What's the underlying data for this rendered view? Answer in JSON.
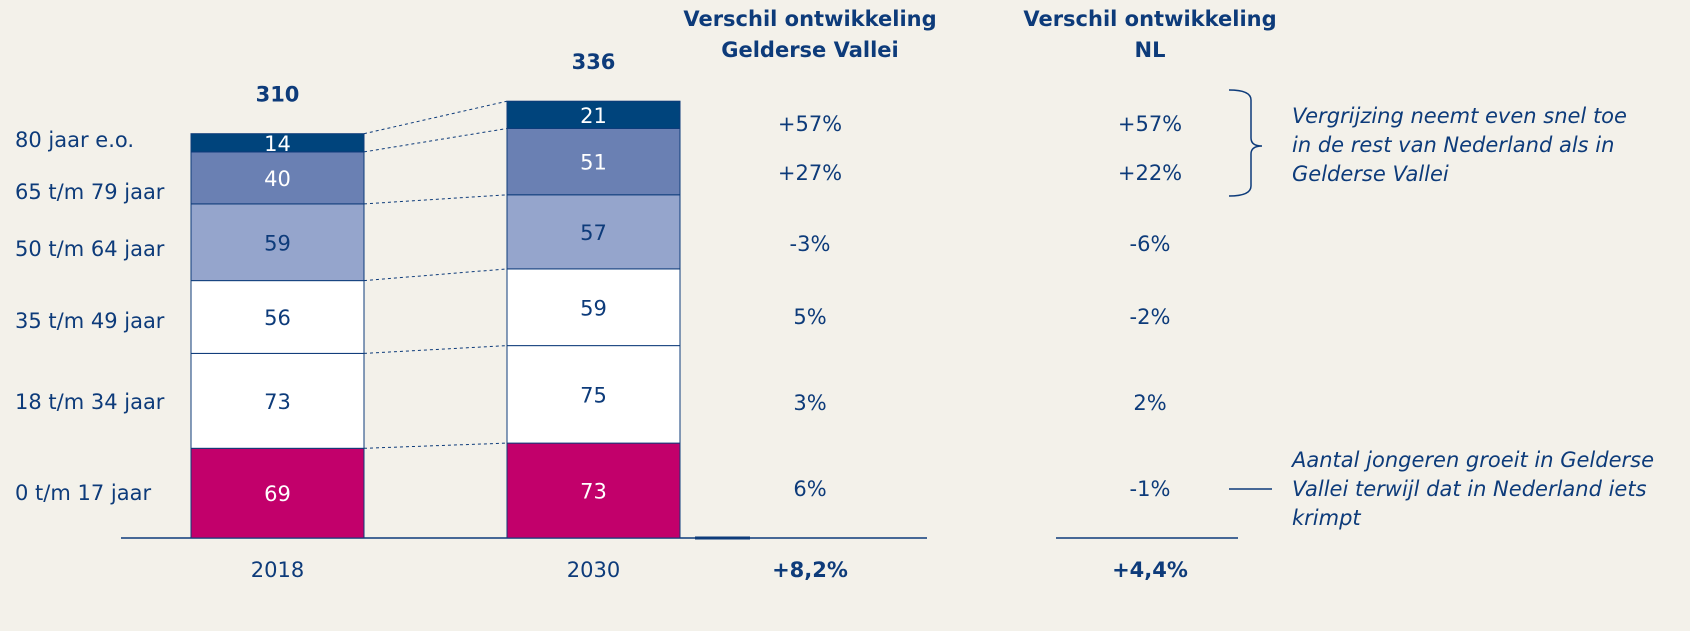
{
  "chart_data": {
    "type": "stacked-bar",
    "categories": [
      "2018",
      "2030"
    ],
    "totals": [
      310,
      336
    ],
    "series": [
      {
        "name": "0 t/m 17 jaar",
        "color": "#c2006b",
        "values": [
          69,
          73
        ]
      },
      {
        "name": "18 t/m 34 jaar",
        "color": "#ffffff",
        "values": [
          73,
          75
        ]
      },
      {
        "name": "35 t/m 49 jaar",
        "color": "#ffffff",
        "values": [
          56,
          59
        ]
      },
      {
        "name": "50 t/m 64 jaar",
        "color": "#95a5cc",
        "values": [
          59,
          57
        ]
      },
      {
        "name": "65 t/m 79 jaar",
        "color": "#6a80b3",
        "values": [
          40,
          51
        ]
      },
      {
        "name": "80 jaar e.o.",
        "color": "#00447c",
        "values": [
          14,
          21
        ]
      }
    ],
    "columns": [
      {
        "header": [
          "Verschil ontwikkeling",
          "Gelderse Vallei"
        ],
        "values": [
          "6%",
          "3%",
          "5%",
          "-3%",
          "+27%",
          "+57%"
        ],
        "total": "+8,2%"
      },
      {
        "header": [
          "Verschil ontwikkeling",
          "NL"
        ],
        "values": [
          "-1%",
          "2%",
          "-2%",
          "-6%",
          "+22%",
          "+57%"
        ],
        "total": "+4,4%"
      }
    ],
    "annotations": [
      [
        "Vergrijzing neemt even snel toe",
        "in de rest van Nederland als in",
        "Gelderse Vallei"
      ],
      [
        "Aantal jongeren groeit in Gelderse",
        "Vallei terwijl dat in Nederland iets",
        "krimpt"
      ]
    ]
  }
}
